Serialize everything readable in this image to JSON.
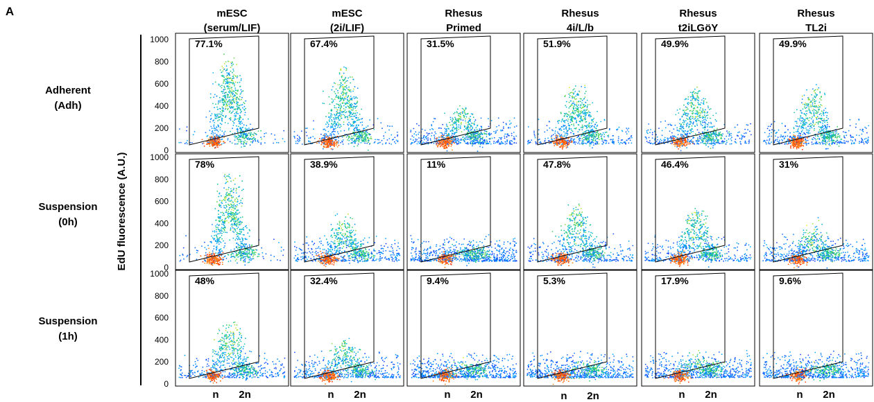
{
  "panel_label": "A",
  "y_axis_label": "EdU fluorescence (A.U.)",
  "columns": [
    {
      "line1": "mESC",
      "line2": "(serum/LIF)"
    },
    {
      "line1": "mESC",
      "line2": "(2i/LIF)"
    },
    {
      "line1": "Rhesus",
      "line2": "Primed"
    },
    {
      "line1": "Rhesus",
      "line2": "4i/L/b"
    },
    {
      "line1": "Rhesus",
      "line2": "t2iLGöY"
    },
    {
      "line1": "Rhesus",
      "line2": "TL2i"
    }
  ],
  "rows": [
    {
      "line1": "Adherent",
      "line2": "(Adh)"
    },
    {
      "line1": "Suspension",
      "line2": "(0h)"
    },
    {
      "line1": "Suspension",
      "line2": "(1h)"
    }
  ],
  "x_tick_labels": [
    "n",
    "2n"
  ],
  "y_tick_labels": [
    "0",
    "200",
    "400",
    "600",
    "800",
    "1000"
  ],
  "chart_data": {
    "type": "scatter",
    "subtype": "flow-cytometry density plots (EdU vs DNA content) with gated S-phase region",
    "ylabel": "EdU fluorescence (A.U.)",
    "ylim": [
      0,
      1000
    ],
    "yticks": [
      0,
      200,
      400,
      600,
      800,
      1000
    ],
    "xticks": [
      "n",
      "2n"
    ],
    "gate_percentages": [
      [
        "77.1%",
        "67.4%",
        "31.5%",
        "51.9%",
        "49.9%",
        "49.9%"
      ],
      [
        "78%",
        "38.9%",
        "11%",
        "47.8%",
        "46.4%",
        "31%"
      ],
      [
        "48%",
        "32.4%",
        "9.4%",
        "5.3%",
        "17.9%",
        "9.6%"
      ]
    ],
    "gate_values": [
      [
        77.1,
        67.4,
        31.5,
        51.9,
        49.9,
        49.9
      ],
      [
        78,
        38.9,
        11,
        47.8,
        46.4,
        31
      ],
      [
        48,
        32.4,
        9.4,
        5.3,
        17.9,
        9.6
      ]
    ],
    "colormap": [
      "#1a1aff",
      "#00b0ff",
      "#22cc66",
      "#ffee22",
      "#ff2200"
    ]
  }
}
